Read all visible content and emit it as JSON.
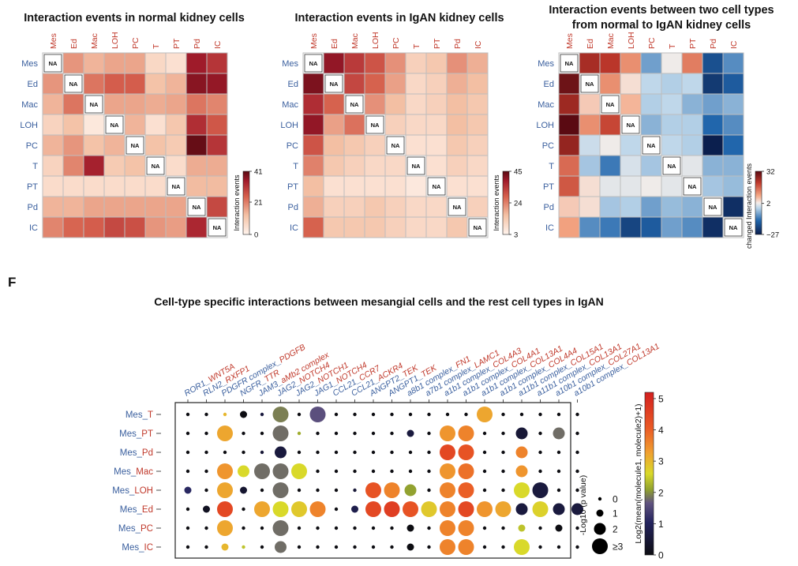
{
  "panel_letter": "F",
  "chart_data": [
    {
      "type": "heatmap",
      "title": "Interaction events in normal kidney cells",
      "rows": [
        "Mes",
        "Ed",
        "Mac",
        "LOH",
        "PC",
        "T",
        "PT",
        "Pd",
        "IC"
      ],
      "cols": [
        "Mes",
        "Ed",
        "Mac",
        "LOH",
        "PC",
        "T",
        "PT",
        "Pd",
        "IC"
      ],
      "na_label": "NA",
      "values": [
        [
          null,
          18,
          14,
          16,
          16,
          7,
          5,
          35,
          31
        ],
        [
          18,
          null,
          22,
          25,
          25,
          12,
          14,
          37,
          36
        ],
        [
          14,
          22,
          null,
          16,
          16,
          15,
          16,
          22,
          20
        ],
        [
          8,
          12,
          3,
          null,
          14,
          5,
          11,
          32,
          26
        ],
        [
          14,
          18,
          12,
          14,
          null,
          12,
          10,
          40,
          31
        ],
        [
          8,
          20,
          34,
          10,
          12,
          null,
          6,
          15,
          15
        ],
        [
          6,
          6,
          6,
          6,
          6,
          6,
          null,
          13,
          13
        ],
        [
          14,
          14,
          16,
          16,
          16,
          16,
          16,
          null,
          28
        ],
        [
          20,
          24,
          25,
          28,
          27,
          18,
          17,
          33,
          null
        ]
      ],
      "legend": {
        "title": "Interaction events",
        "ticks": [
          0,
          21,
          41
        ],
        "min": 0,
        "max": 41
      }
    },
    {
      "type": "heatmap",
      "title": "Interaction events in IgAN kidney cells",
      "rows": [
        "Mes",
        "Ed",
        "Mac",
        "LOH",
        "PC",
        "T",
        "PT",
        "Pd",
        "IC"
      ],
      "cols": [
        "Mes",
        "Ed",
        "Mac",
        "LOH",
        "PC",
        "T",
        "PT",
        "Pd",
        "IC"
      ],
      "na_label": "NA",
      "values": [
        [
          null,
          40,
          34,
          30,
          22,
          12,
          14,
          22,
          18
        ],
        [
          42,
          null,
          32,
          28,
          20,
          10,
          12,
          18,
          16
        ],
        [
          36,
          28,
          null,
          22,
          16,
          10,
          12,
          16,
          14
        ],
        [
          40,
          20,
          26,
          null,
          12,
          10,
          10,
          16,
          14
        ],
        [
          30,
          16,
          14,
          12,
          null,
          8,
          8,
          14,
          12
        ],
        [
          24,
          14,
          12,
          10,
          10,
          null,
          8,
          12,
          10
        ],
        [
          16,
          8,
          8,
          8,
          8,
          6,
          null,
          8,
          8
        ],
        [
          18,
          12,
          12,
          14,
          12,
          10,
          10,
          null,
          12
        ],
        [
          28,
          14,
          14,
          14,
          12,
          10,
          10,
          14,
          null
        ]
      ],
      "legend": {
        "title": "Interaction events",
        "ticks": [
          3,
          24,
          45
        ],
        "min": 3,
        "max": 45
      }
    },
    {
      "type": "heatmap",
      "title": "Interaction events between two cell types",
      "subtitle": "from normal to IgAN kidney cells",
      "rows": [
        "Mes",
        "Ed",
        "Mac",
        "LOH",
        "PC",
        "T",
        "PT",
        "Pd",
        "IC"
      ],
      "cols": [
        "Mes",
        "Ed",
        "Mac",
        "LOH",
        "PC",
        "T",
        "PT",
        "Pd",
        "IC"
      ],
      "na_label": "NA",
      "values": [
        [
          null,
          24,
          22,
          12,
          -8,
          2,
          14,
          -18,
          -10
        ],
        [
          30,
          null,
          12,
          4,
          -2,
          -3,
          -2,
          -22,
          -16
        ],
        [
          25,
          6,
          null,
          8,
          -3,
          -2,
          -6,
          -8,
          -6
        ],
        [
          32,
          12,
          20,
          null,
          -6,
          -3,
          -3,
          -14,
          -10
        ],
        [
          26,
          -1,
          2,
          -2,
          null,
          -2,
          -3,
          -27,
          -14
        ],
        [
          16,
          -4,
          -12,
          0,
          -4,
          null,
          1,
          -6,
          -6
        ],
        [
          18,
          4,
          1,
          1,
          2,
          1,
          null,
          -4,
          -5
        ],
        [
          6,
          4,
          -4,
          -3,
          -8,
          -5,
          -6,
          null,
          -24
        ],
        [
          10,
          -10,
          -12,
          -20,
          -16,
          -8,
          -10,
          -24,
          null
        ]
      ],
      "legend": {
        "title": "changed Interaction events",
        "ticks": [
          -27,
          2,
          32
        ],
        "min": -27,
        "max": 32
      }
    },
    {
      "type": "dot",
      "title": "Cell-type specific interactions between mesangial cells and the rest cell types in IgAN",
      "rows": [
        "Mes_T",
        "Mes_PT",
        "Mes_Pd",
        "Mes_Mac",
        "Mes_LOH",
        "Mes_Ed",
        "Mes_PC",
        "Mes_IC"
      ],
      "pairs": [
        {
          "a": "ROR1",
          "b": "WNT5A"
        },
        {
          "a": "RLN2",
          "b": "RXFP1"
        },
        {
          "a": "PDGFR complex",
          "b": "PDGFB"
        },
        {
          "a": "NGFR",
          "b": "TTR"
        },
        {
          "a": "JAM3",
          "b": "aMb2 complex"
        },
        {
          "a": "JAG2",
          "b": "NOTCH4"
        },
        {
          "a": "JAG2",
          "b": "NOTCH1"
        },
        {
          "a": "JAG1",
          "b": "NOTCH4"
        },
        {
          "a": "CCL21",
          "b": "CCR7"
        },
        {
          "a": "CCL21",
          "b": "ACKR4"
        },
        {
          "a": "ANGPT2",
          "b": "TEK"
        },
        {
          "a": "ANGPT1",
          "b": "TEK"
        },
        {
          "a": "a8b1 complex",
          "b": "FN1"
        },
        {
          "a": "a7b1 complex",
          "b": "LAMC1"
        },
        {
          "a": "a1b1 complex",
          "b": "COL4A3"
        },
        {
          "a": "a1b1 complex",
          "b": "COL4A1"
        },
        {
          "a": "a1b1 complex",
          "b": "COL13A1"
        },
        {
          "a": "a1b1 complex",
          "b": "COL4A4"
        },
        {
          "a": "a11b1 complex",
          "b": "COL15A1"
        },
        {
          "a": "a11b1 complex",
          "b": "COL13A1"
        },
        {
          "a": "a10b1 complex",
          "b": "COL27A1"
        },
        {
          "a": "a10b1 complex",
          "b": "COL13A1"
        }
      ],
      "mean": [
        [
          0,
          0,
          3,
          0,
          0.6,
          1.9,
          0,
          1.6,
          0,
          0,
          0,
          0,
          0,
          0,
          0,
          0,
          3.2,
          0,
          0,
          0,
          0,
          0
        ],
        [
          0,
          0,
          3.2,
          0,
          0,
          1.8,
          2.2,
          0,
          0,
          0,
          0,
          0,
          0.6,
          0,
          3.4,
          3.6,
          0,
          0,
          0.5,
          0,
          1.8,
          0
        ],
        [
          0,
          0,
          0,
          0,
          0.5,
          0.6,
          0,
          0,
          0,
          0,
          0,
          0,
          0,
          0,
          4.4,
          4.2,
          0,
          0,
          3.6,
          0,
          0,
          0
        ],
        [
          0,
          0,
          3.4,
          2.6,
          1.8,
          1.8,
          2.6,
          0,
          0,
          0,
          0,
          0,
          0,
          0,
          3.4,
          3.8,
          0,
          0,
          3.4,
          0,
          0,
          0
        ],
        [
          1.1,
          0,
          3.2,
          0.4,
          0,
          1.8,
          0,
          0,
          0,
          0.5,
          4.2,
          3.6,
          2.1,
          0,
          3.6,
          4,
          0,
          0,
          2.6,
          0.6,
          0,
          0
        ],
        [
          0,
          0.2,
          4.4,
          0,
          3.2,
          2.6,
          2.8,
          3.6,
          0,
          0.8,
          4.4,
          4.6,
          4.2,
          2.8,
          3.6,
          4.4,
          3.4,
          3.2,
          0.6,
          2.7,
          0.6,
          0.6
        ],
        [
          0,
          0,
          3.2,
          0,
          0,
          1.8,
          0,
          0,
          0,
          0,
          0,
          0,
          0,
          0,
          3.6,
          3.6,
          0,
          0,
          2.4,
          0,
          0,
          0
        ],
        [
          0,
          0,
          3,
          2.4,
          0,
          1.8,
          0,
          0,
          0,
          0,
          0,
          0,
          0,
          0,
          3.6,
          3.6,
          0,
          0,
          2.6,
          0,
          0,
          0
        ]
      ],
      "logp": [
        [
          0,
          0,
          0,
          1,
          0,
          3,
          0,
          3,
          0,
          0,
          0,
          0,
          0,
          0,
          0,
          0,
          3,
          0,
          0,
          0,
          0,
          0
        ],
        [
          0,
          0,
          3,
          0,
          0,
          3,
          0,
          0,
          0,
          0,
          0,
          0,
          1,
          0,
          3,
          3,
          0,
          0,
          2,
          0,
          2,
          0
        ],
        [
          0,
          0,
          0,
          0,
          0,
          2,
          0,
          0,
          0,
          0,
          0,
          0,
          0,
          0,
          3,
          3,
          0,
          0,
          2,
          0,
          0,
          0
        ],
        [
          0,
          0,
          3,
          2,
          3,
          3,
          3,
          0,
          0,
          0,
          0,
          0,
          0,
          0,
          3,
          3,
          0,
          0,
          2,
          0,
          0,
          0
        ],
        [
          1,
          0,
          3,
          1,
          0,
          3,
          0,
          0,
          0,
          0,
          3,
          3,
          2,
          0,
          3,
          3,
          0,
          0,
          3,
          3,
          0,
          0
        ],
        [
          0,
          1,
          3,
          0,
          3,
          3,
          3,
          3,
          0,
          1,
          3,
          3,
          3,
          3,
          3,
          3,
          3,
          3,
          2,
          3,
          2,
          2
        ],
        [
          0,
          0,
          3,
          0,
          0,
          3,
          0,
          0,
          0,
          0,
          0,
          0,
          1,
          0,
          3,
          3,
          0,
          0,
          1,
          0,
          1,
          0
        ],
        [
          0,
          0,
          1,
          0,
          0,
          2,
          0,
          0,
          0,
          0,
          0,
          0,
          1,
          0,
          3,
          3,
          0,
          0,
          3,
          0,
          0,
          0
        ]
      ],
      "size_legend": {
        "title": "-Log10 (p value)",
        "labels": [
          "0",
          "1",
          "2",
          "≥3"
        ]
      },
      "color_legend": {
        "title": "Log2(mean(molecule1, molecule2)+1)",
        "ticks": [
          0,
          1,
          2,
          3,
          4,
          5
        ],
        "min": 0,
        "max": 5.2
      }
    }
  ]
}
